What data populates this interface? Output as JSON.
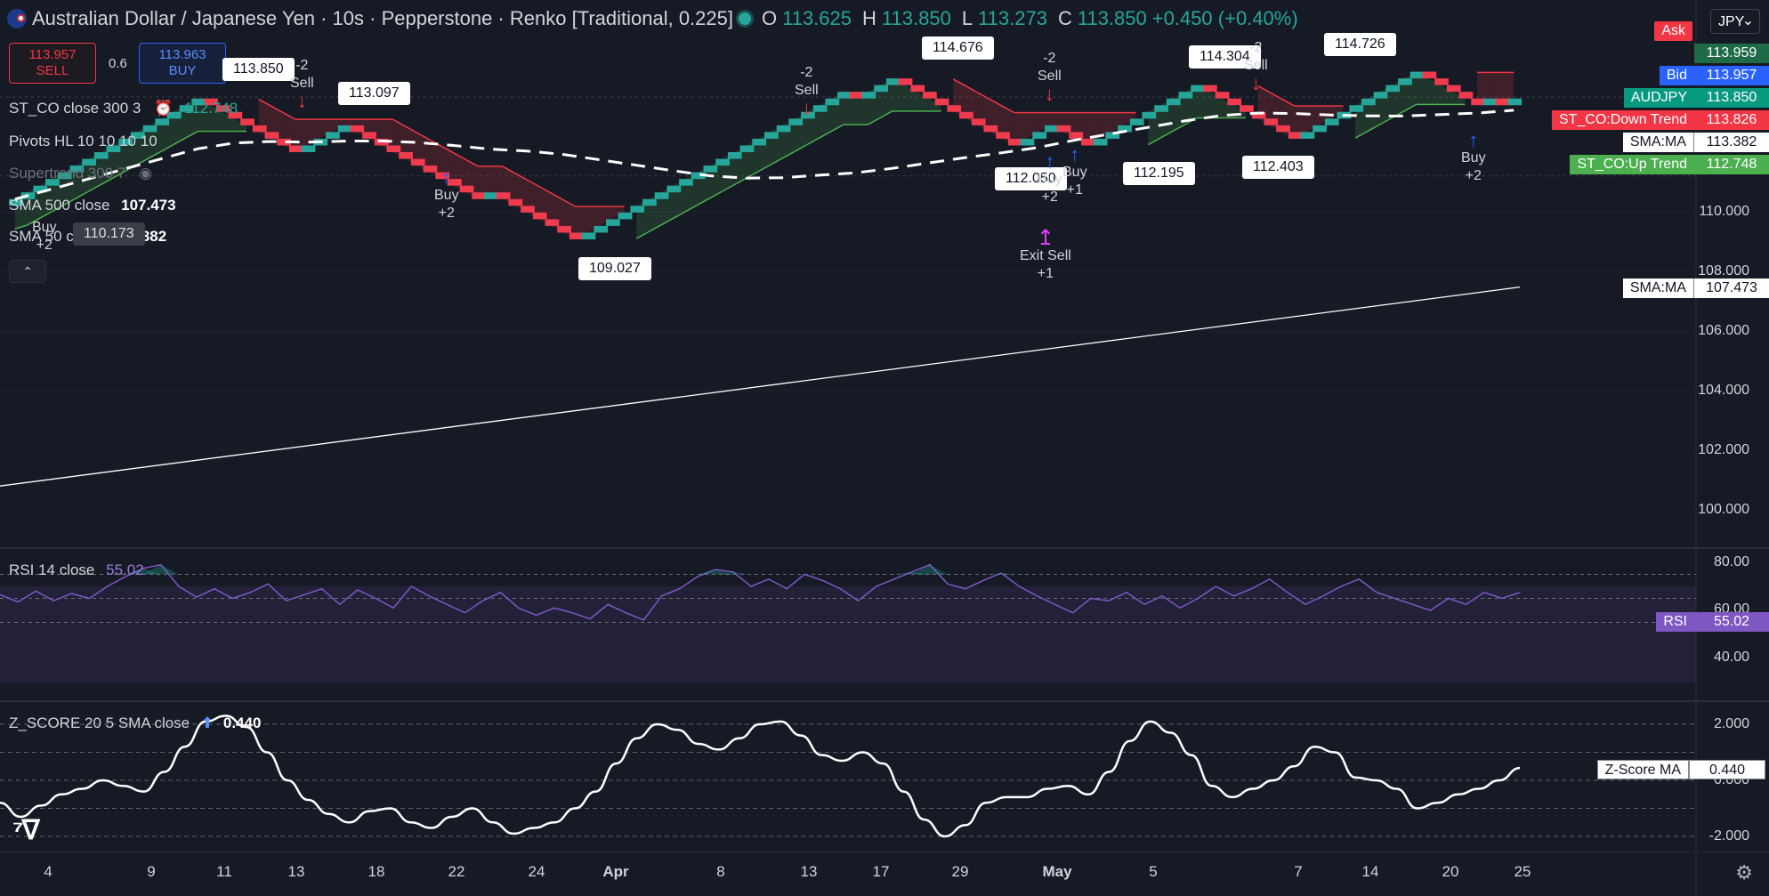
{
  "header": {
    "title": "Australian Dollar / Japanese Yen · 10s · Pepperstone · Renko [Traditional, 0.225]",
    "o_label": "O",
    "o_value": "113.625",
    "h_label": "H",
    "h_value": "113.850",
    "l_label": "L",
    "l_value": "113.273",
    "c_label": "C",
    "c_value": "113.850",
    "change": "+0.450 (+0.40%)"
  },
  "trade": {
    "sell_price": "113.957",
    "sell_label": "SELL",
    "spread": "0.6",
    "buy_price": "113.963",
    "buy_label": "BUY"
  },
  "legends": {
    "st_co": {
      "name": "ST_CO close 300 3",
      "value": "112.748"
    },
    "pivots": {
      "name": "Pivots HL 10 10 10 10"
    },
    "supertrend": {
      "name": "Supertrend 300 7"
    },
    "sma500": {
      "name": "SMA 500 close",
      "value": "107.473"
    },
    "sma50": {
      "name": "SMA 50 close",
      "value": "113.382"
    }
  },
  "price_scale": {
    "currency": "JPY",
    "ticks": [
      "110.000",
      "108.000",
      "106.000",
      "104.000",
      "102.000",
      "100.000"
    ],
    "tags": [
      {
        "name": "Ask",
        "value": "113.959",
        "color": "#f23645",
        "value_bg": "#1f6b47"
      },
      {
        "name": "Bid",
        "value": "113.957",
        "color": "#2962ff",
        "value_bg": "#2962ff"
      },
      {
        "name": "AUDJPY",
        "value": "113.850",
        "color": "#089981",
        "value_bg": "#089981"
      },
      {
        "name": "ST_CO:Down Trend",
        "value": "113.826",
        "color": "#f23645",
        "value_bg": "#f23645"
      },
      {
        "name": "SMA:MA",
        "value": "113.382",
        "color": "#ffffff",
        "value_bg": "#ffffff"
      },
      {
        "name": "ST_CO:Up Trend",
        "value": "112.748",
        "color": "#4caf50",
        "value_bg": "#4caf50"
      },
      {
        "name": "SMA:MA",
        "value": "107.473",
        "color": "#ffffff",
        "value_bg": "#ffffff"
      }
    ]
  },
  "pivot_labels": [
    {
      "text": "113.850"
    },
    {
      "text": "113.097"
    },
    {
      "text": "109.027"
    },
    {
      "text": "114.676"
    },
    {
      "text": "112.050"
    },
    {
      "text": "112.195"
    },
    {
      "text": "114.304"
    },
    {
      "text": "112.403"
    },
    {
      "text": "114.726"
    },
    {
      "text": "110.173"
    }
  ],
  "signals": [
    {
      "text": "-2\nSell",
      "kind": "sell"
    },
    {
      "text": "Buy\n+2",
      "kind": "buy"
    },
    {
      "text": "-2\nSell",
      "kind": "sell"
    },
    {
      "text": "-2\nSell",
      "kind": "sell"
    },
    {
      "text": "Buy\n+2",
      "kind": "buy"
    },
    {
      "text": "Buy\n+1",
      "kind": "buy"
    },
    {
      "text": "Exit Sell\n+1",
      "kind": "exit"
    },
    {
      "text": "-2\nSell",
      "kind": "sell"
    },
    {
      "text": "Buy\n+2",
      "kind": "buy"
    },
    {
      "text": "Buy\n+2",
      "kind": "buy"
    }
  ],
  "rsi": {
    "title": "RSI 14 close",
    "value": "55.02",
    "tag": "RSI",
    "ticks": [
      "80.00",
      "60.00",
      "40.00"
    ]
  },
  "zscore": {
    "title": "Z_SCORE 20 5 SMA close",
    "value": "0.440",
    "tag": "Z-Score MA",
    "ticks": [
      "2.000",
      "0.000",
      "-2.000"
    ]
  },
  "x_axis": {
    "labels": [
      {
        "text": "4"
      },
      {
        "text": "9"
      },
      {
        "text": "11"
      },
      {
        "text": "13"
      },
      {
        "text": "18"
      },
      {
        "text": "22"
      },
      {
        "text": "24"
      },
      {
        "text": "Apr",
        "bold": true
      },
      {
        "text": "8"
      },
      {
        "text": "13"
      },
      {
        "text": "17"
      },
      {
        "text": "29"
      },
      {
        "text": "May",
        "bold": true
      },
      {
        "text": "5"
      },
      {
        "text": "7"
      },
      {
        "text": "14"
      },
      {
        "text": "20"
      },
      {
        "text": "25"
      }
    ]
  },
  "chart_data": {
    "type": "line",
    "symbol": "AUDJPY",
    "style": "renko",
    "box_size": 0.225,
    "x_labels": [
      "4",
      "9",
      "11",
      "13",
      "18",
      "22",
      "24",
      "Apr",
      "8",
      "13",
      "17",
      "29",
      "May",
      "5",
      "7",
      "14",
      "20",
      "25"
    ],
    "price_ylim": [
      99.0,
      116.0
    ],
    "renko_close": [
      110.2,
      111.0,
      112.0,
      113.85,
      112.6,
      111.9,
      113.097,
      111.8,
      111.6,
      111.4,
      110.3,
      110.8,
      109.8,
      109.027,
      110.1,
      111.5,
      112.6,
      113.4,
      114.2,
      114.0,
      113.7,
      114.676,
      113.5,
      112.05,
      113.0,
      112.7,
      112.195,
      113.2,
      114.304,
      113.4,
      112.403,
      113.6,
      114.726,
      113.9,
      113.5,
      113.8,
      113.4,
      113.6,
      113.85
    ],
    "series": [
      {
        "name": "SMA 500 close",
        "last": 107.473,
        "start": 100.8
      },
      {
        "name": "SMA 50 close",
        "last": 113.382
      },
      {
        "name": "ST_CO close 300 3",
        "last": 112.748
      }
    ],
    "rsi": {
      "ylim": [
        20,
        90
      ],
      "bands": [
        70,
        50,
        30
      ],
      "values": [
        53,
        47,
        56,
        48,
        54,
        50,
        60,
        68,
        75,
        78,
        60,
        51,
        58,
        50,
        55,
        62,
        48,
        53,
        58,
        45,
        57,
        50,
        42,
        60,
        52,
        45,
        38,
        48,
        55,
        42,
        36,
        42,
        38,
        33,
        45,
        38,
        32,
        52,
        58,
        68,
        74,
        72,
        60,
        66,
        58,
        70,
        65,
        58,
        48,
        60,
        66,
        72,
        78,
        62,
        58,
        65,
        71,
        60,
        52,
        45,
        38,
        50,
        48,
        55,
        45,
        52,
        42,
        50,
        60,
        52,
        58,
        66,
        55,
        45,
        52,
        60,
        66,
        55,
        50,
        45,
        40,
        50,
        45,
        55,
        50,
        55
      ]
    },
    "zscore": {
      "ylim": [
        -2.6,
        2.6
      ],
      "bands": [
        2.0,
        1.0,
        0.0,
        -1.0,
        -2.0
      ],
      "values": [
        -0.8,
        -1.3,
        -0.9,
        -0.5,
        -0.3,
        0.0,
        -0.2,
        -0.4,
        0.3,
        1.2,
        2.1,
        2.3,
        1.9,
        1.0,
        0.0,
        -0.7,
        -1.2,
        -1.5,
        -1.1,
        -1.0,
        -1.5,
        -1.7,
        -1.3,
        -1.0,
        -1.5,
        -1.9,
        -1.7,
        -1.5,
        -1.0,
        -0.4,
        0.6,
        1.5,
        2.0,
        1.8,
        1.3,
        1.1,
        1.5,
        2.0,
        2.1,
        1.6,
        0.9,
        0.7,
        1.0,
        0.6,
        -0.4,
        -1.4,
        -2.0,
        -1.6,
        -0.8,
        -0.6,
        -0.6,
        -0.3,
        -0.2,
        -0.5,
        0.3,
        1.4,
        2.1,
        1.7,
        0.9,
        -0.2,
        -0.6,
        -0.3,
        0.0,
        0.5,
        1.2,
        1.0,
        0.1,
        0.0,
        -0.3,
        -1.0,
        -0.8,
        -0.5,
        -0.3,
        0.0,
        0.44
      ]
    }
  }
}
